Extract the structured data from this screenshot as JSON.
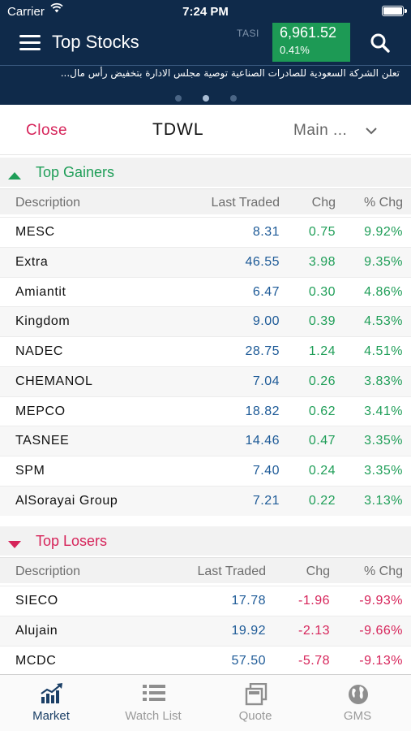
{
  "status_bar": {
    "carrier": "Carrier",
    "time": "7:24 PM"
  },
  "header": {
    "title": "Top Stocks",
    "index_label": "TASI",
    "index_value": "6,961.52",
    "index_change": "0.41%",
    "index_color": "#1d9a55"
  },
  "news": {
    "text": "تعلن الشركة السعودية للصادرات الصناعية توصية مجلس الادارة بتخفيض رأس مال...",
    "pages": 3,
    "active_page": 2
  },
  "selector": {
    "close_label": "Close",
    "exchange": "TDWL",
    "market_value": "Main ..."
  },
  "columns": {
    "description": "Description",
    "last_traded": "Last Traded",
    "chg": "Chg",
    "pct_chg": "% Chg"
  },
  "gainers": {
    "title": "Top Gainers",
    "color": "#1f9e58",
    "rows": [
      {
        "description": "MESC",
        "last": "8.31",
        "chg": "0.75",
        "pct": "9.92%"
      },
      {
        "description": "Extra",
        "last": "46.55",
        "chg": "3.98",
        "pct": "9.35%"
      },
      {
        "description": "Amiantit",
        "last": "6.47",
        "chg": "0.30",
        "pct": "4.86%"
      },
      {
        "description": "Kingdom",
        "last": "9.00",
        "chg": "0.39",
        "pct": "4.53%"
      },
      {
        "description": "NADEC",
        "last": "28.75",
        "chg": "1.24",
        "pct": "4.51%"
      },
      {
        "description": "CHEMANOL",
        "last": "7.04",
        "chg": "0.26",
        "pct": "3.83%"
      },
      {
        "description": "MEPCO",
        "last": "18.82",
        "chg": "0.62",
        "pct": "3.41%"
      },
      {
        "description": "TASNEE",
        "last": "14.46",
        "chg": "0.47",
        "pct": "3.35%"
      },
      {
        "description": "SPM",
        "last": "7.40",
        "chg": "0.24",
        "pct": "3.35%"
      },
      {
        "description": "AlSorayai Group",
        "last": "7.21",
        "chg": "0.22",
        "pct": "3.13%"
      }
    ]
  },
  "losers": {
    "title": "Top Losers",
    "color": "#d6245a",
    "rows": [
      {
        "description": "SIECO",
        "last": "17.78",
        "chg": "-1.96",
        "pct": "-9.93%"
      },
      {
        "description": "Alujain",
        "last": "19.92",
        "chg": "-2.13",
        "pct": "-9.66%"
      },
      {
        "description": "MCDC",
        "last": "57.50",
        "chg": "-5.78",
        "pct": "-9.13%"
      }
    ]
  },
  "tabs": [
    {
      "label": "Market",
      "icon": "bar-chart-icon",
      "active": true
    },
    {
      "label": "Watch List",
      "icon": "list-icon",
      "active": false
    },
    {
      "label": "Quote",
      "icon": "quote-cards-icon",
      "active": false
    },
    {
      "label": "GMS",
      "icon": "globe-icon",
      "active": false
    }
  ]
}
